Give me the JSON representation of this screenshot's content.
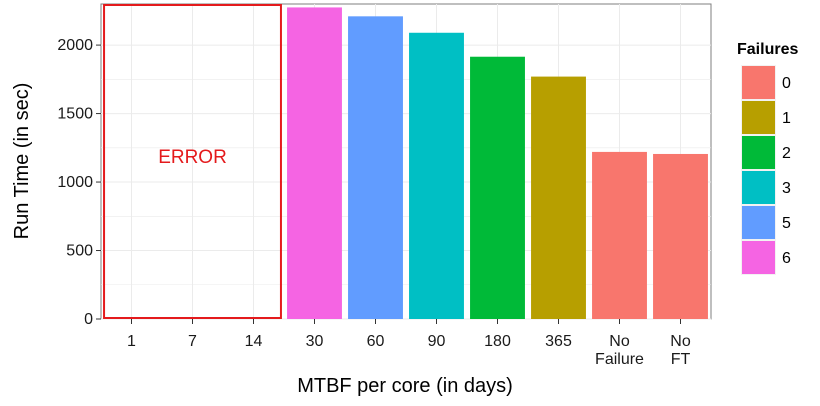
{
  "chart_data": {
    "type": "bar",
    "xlabel": "MTBF per core (in days)",
    "ylabel": "Run Time (in sec)",
    "ylim": [
      0,
      2300
    ],
    "yticks": [
      0,
      500,
      1000,
      1500,
      2000
    ],
    "grid": true,
    "categories": [
      [
        "1"
      ],
      [
        "7"
      ],
      [
        "14"
      ],
      [
        "30"
      ],
      [
        "60"
      ],
      [
        "90"
      ],
      [
        "180"
      ],
      [
        "365"
      ],
      [
        "No",
        "Failure"
      ],
      [
        "No",
        "FT"
      ]
    ],
    "values": [
      null,
      null,
      null,
      2275,
      2210,
      2090,
      1915,
      1770,
      1220,
      1205
    ],
    "failures": [
      null,
      null,
      null,
      "6",
      "5",
      "3",
      "2",
      "1",
      "0",
      "0"
    ],
    "error_region": {
      "from": "1",
      "to": "14",
      "label": "ERROR",
      "color": "#e41a1c"
    },
    "legend": {
      "title": "Failures",
      "placement": "right",
      "entries": [
        {
          "label": "0",
          "color": "#f8766d"
        },
        {
          "label": "1",
          "color": "#b79f00"
        },
        {
          "label": "2",
          "color": "#00ba38"
        },
        {
          "label": "3",
          "color": "#00bfc4"
        },
        {
          "label": "5",
          "color": "#619cff"
        },
        {
          "label": "6",
          "color": "#f564e3"
        }
      ]
    },
    "panel_bg": "#ffffff",
    "grid_color": "#ebebeb"
  }
}
